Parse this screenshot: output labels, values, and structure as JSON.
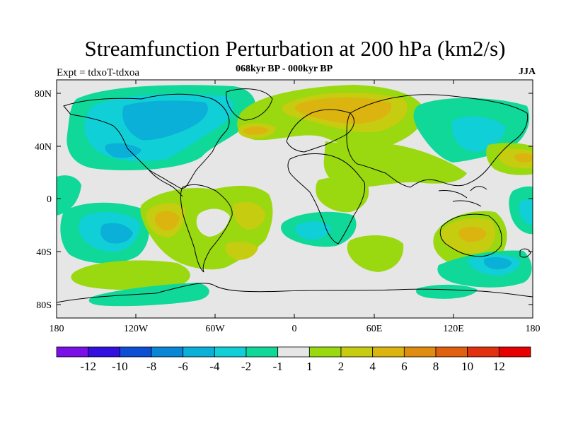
{
  "title": "Streamfunction Perturbation at 200 hPa (km2/s)",
  "left_label": "Expt = tdxoT-tdxoa",
  "center_label": "068kyr BP - 000kyr BP",
  "right_label": "JJA",
  "lon_ticks": [
    "180",
    "120W",
    "60W",
    "0",
    "60E",
    "120E",
    "180"
  ],
  "lat_ticks": [
    "80N",
    "40N",
    "0",
    "40S",
    "80S"
  ],
  "colorbar": {
    "colors": [
      "#7b10e6",
      "#3310e0",
      "#0d4fd4",
      "#0a86d6",
      "#0ab0d8",
      "#10cfd6",
      "#10d898",
      "#e6e6e6",
      "#9ad810",
      "#c6cc10",
      "#dcb410",
      "#e08c10",
      "#e06010",
      "#e03010",
      "#e60000"
    ],
    "labels": [
      "-12",
      "-10",
      "-8",
      "-6",
      "-4",
      "-2",
      "-1",
      "1",
      "2",
      "4",
      "6",
      "8",
      "10",
      "12"
    ]
  }
}
